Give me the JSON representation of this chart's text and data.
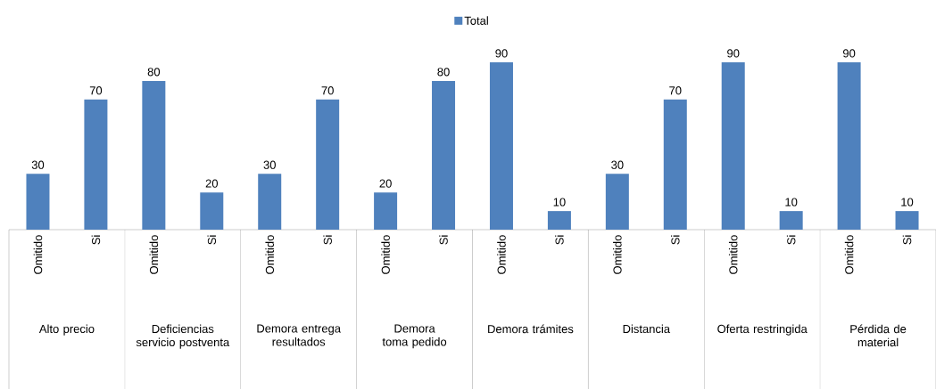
{
  "chart_data": {
    "type": "bar",
    "categories": [
      "Omitido",
      "Si",
      "Omitido",
      "Si",
      "Omitido",
      "Si",
      "Omitido",
      "Si",
      "Omitido",
      "Si",
      "Omitido",
      "Si",
      "Omitido",
      "Si",
      "Omitido",
      "Si"
    ],
    "series": [
      {
        "name": "Total",
        "color": "#4f81bd",
        "values": [
          30,
          70,
          80,
          20,
          30,
          70,
          20,
          80,
          90,
          10,
          30,
          70,
          90,
          10,
          90,
          10
        ]
      }
    ],
    "data_labels": true,
    "legend": "top",
    "tick_labels": "x",
    "annotations": [
      "Alto precio",
      "Deficiencias servicio postventa",
      "Demora entrega resultados",
      "Demora toma pedido",
      "Demora trámites",
      "Distancia",
      "Oferta restringida",
      "Pérdida de material"
    ]
  }
}
